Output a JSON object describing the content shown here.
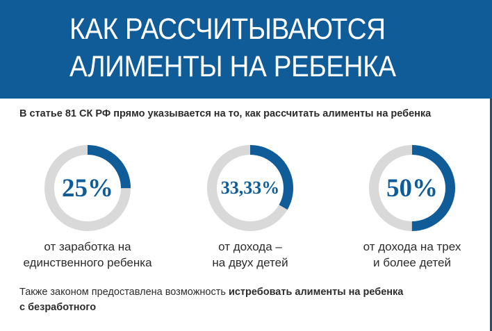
{
  "header": {
    "title_line1": "КАК РАССЧИТЫВАЮТСЯ",
    "title_line2": "АЛИМЕНТЫ НА РЕБЕНКА"
  },
  "subtitle": "В статье 81 СК РФ прямо указывается на то, как рассчитать алименты на ребенка",
  "stats": [
    {
      "value": "25%",
      "fraction": 0.25,
      "caption_line1": "от заработка на",
      "caption_line2": "единственного ребенка"
    },
    {
      "value": "33,33%",
      "fraction": 0.3333,
      "caption_line1": "от дохода –",
      "caption_line2": "на двух детей"
    },
    {
      "value": "50%",
      "fraction": 0.5,
      "caption_line1": "от дохода на трех",
      "caption_line2": "и более детей"
    }
  ],
  "footer": {
    "text_regular": "Также законом предоставлена возможность ",
    "text_bold_line1": "истребовать алименты на ребенка",
    "text_bold_line2": "с безработного"
  },
  "colors": {
    "accent": "#0f5c99",
    "ring_track": "#d9d9d9"
  }
}
